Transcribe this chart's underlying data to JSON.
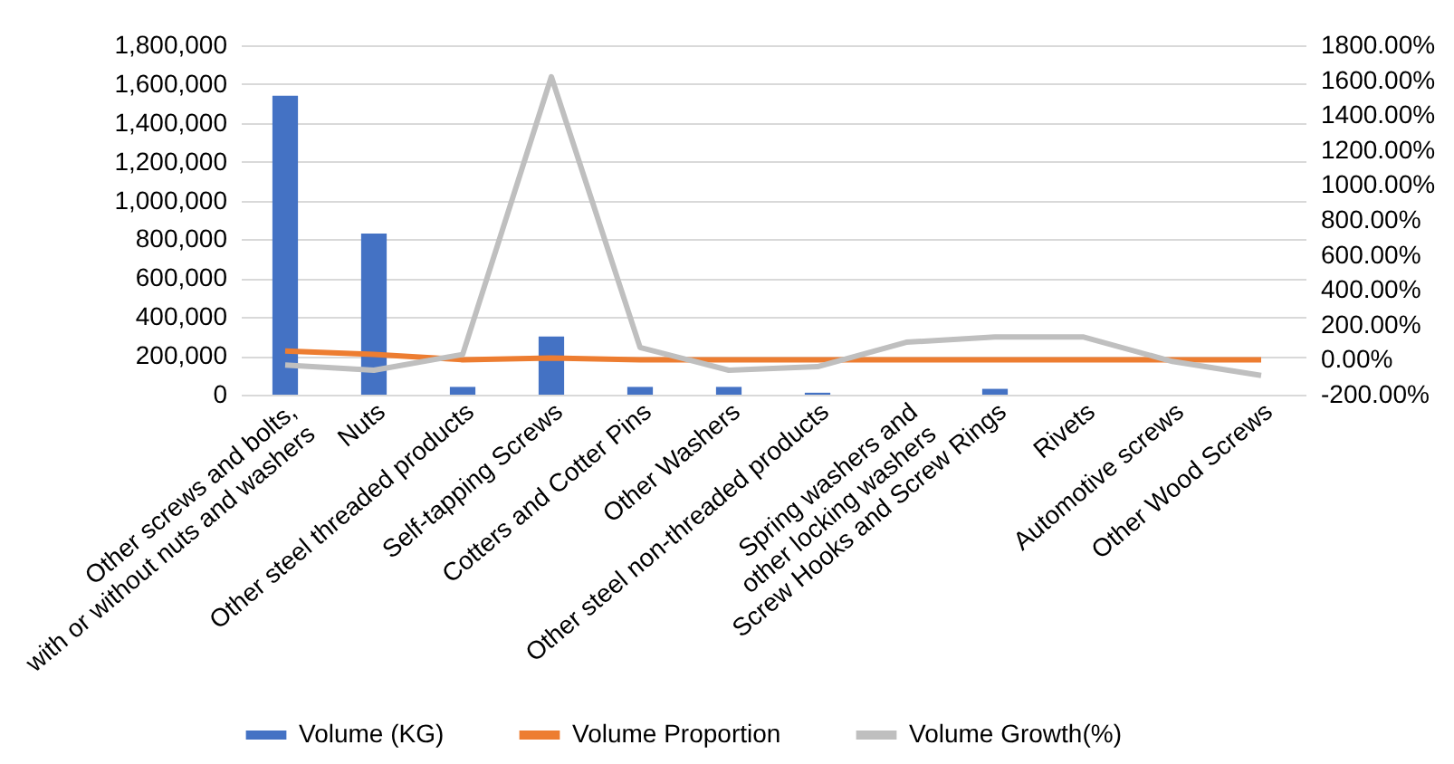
{
  "chart_data": {
    "type": "bar",
    "categories": [
      "Other screws and bolts,\nwith or without nuts and washers",
      "Nuts",
      "Other steel threaded products",
      "Self-tapping Screws",
      "Cotters and Cotter Pins",
      "Other Washers",
      "Other steel non-threaded products",
      "Spring washers and\nother locking washers",
      "Screw Hooks and Screw Rings",
      "Rivets",
      "Automotive screws",
      "Other Wood Screws"
    ],
    "series": [
      {
        "name": "Volume (KG)",
        "color": "#4472c4",
        "values": [
          1540000,
          830000,
          40000,
          300000,
          40000,
          40000,
          10000,
          0,
          30000,
          0,
          0,
          0
        ]
      },
      {
        "name": "Volume Proportion",
        "color": "#ed7d31",
        "type": "line",
        "axis": "y2",
        "values": [
          50,
          30,
          0,
          10,
          0,
          0,
          0,
          0,
          0,
          0,
          0,
          0
        ]
      },
      {
        "name": "Volume Growth(%)",
        "color": "#bfbfbf",
        "type": "line",
        "axis": "y2",
        "values": [
          -30,
          -60,
          30,
          1620,
          70,
          -60,
          -40,
          100,
          130,
          130,
          -10,
          -90
        ]
      }
    ],
    "ylim": [
      0,
      1800000
    ],
    "yticks": [
      0,
      {
        "value": 200000,
        "label": "200,000"
      },
      {
        "value": 400000,
        "label": "400,000"
      },
      {
        "value": 600000,
        "label": "600,000"
      },
      {
        "value": 800000,
        "label": "800,000"
      },
      {
        "value": 1000000,
        "label": "1,000,000"
      },
      {
        "value": 1200000,
        "label": "1,200,000"
      },
      {
        "value": 1400000,
        "label": "1,400,000"
      },
      {
        "value": 1600000,
        "label": "1,600,000"
      },
      {
        "value": 1800000,
        "label": "1,800,000"
      }
    ],
    "y2lim": [
      -200,
      1800
    ],
    "y2ticks": [
      {
        "value": -200,
        "label": "-200.00%"
      },
      {
        "value": 0,
        "label": "0.00%"
      },
      {
        "value": 200,
        "label": "200.00%"
      },
      {
        "value": 400,
        "label": "400.00%"
      },
      {
        "value": 600,
        "label": "600.00%"
      },
      {
        "value": 800,
        "label": "800.00%"
      },
      {
        "value": 1000,
        "label": "1000.00%"
      },
      {
        "value": 1200,
        "label": "1200.00%"
      },
      {
        "value": 1400,
        "label": "1400.00%"
      },
      {
        "value": 1600,
        "label": "1600.00%"
      },
      {
        "value": 1800,
        "label": "1800.00%"
      }
    ],
    "grid": "y",
    "legend": "bottom",
    "marker": "none"
  }
}
